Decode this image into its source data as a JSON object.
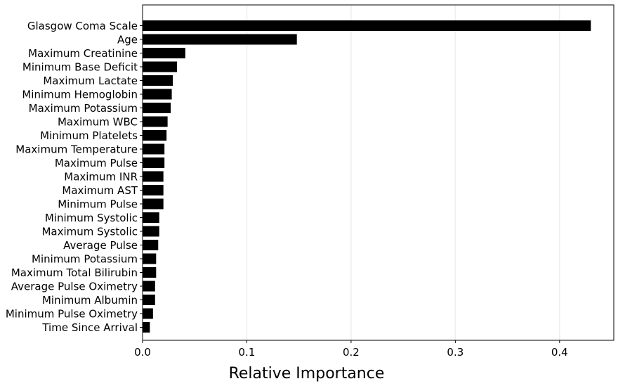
{
  "chart_data": {
    "type": "bar",
    "orientation": "horizontal",
    "categories": [
      "Glasgow Coma Scale",
      "Age",
      "Maximum Creatinine",
      "Minimum Base Deficit",
      "Maximum Lactate",
      "Minimum Hemoglobin",
      "Maximum Potassium",
      "Maximum WBC",
      "Minimum Platelets",
      "Maximum Temperature",
      "Maximum Pulse",
      "Maximum INR",
      "Maximum AST",
      "Minimum Pulse",
      "Minimum Systolic",
      "Maximum Systolic",
      "Average Pulse",
      "Minimum Potassium",
      "Maximum Total Bilirubin",
      "Average Pulse Oximetry",
      "Minimum Albumin",
      "Minimum Pulse Oximetry",
      "Time Since Arrival"
    ],
    "values": [
      0.43,
      0.148,
      0.041,
      0.033,
      0.029,
      0.028,
      0.027,
      0.024,
      0.023,
      0.021,
      0.021,
      0.02,
      0.02,
      0.02,
      0.016,
      0.016,
      0.015,
      0.013,
      0.013,
      0.012,
      0.012,
      0.01,
      0.007
    ],
    "xlabel": "Relative Importance",
    "ylabel": "",
    "title": "",
    "xlim": [
      0,
      0.452
    ],
    "xticks": [
      0.0,
      0.1,
      0.2,
      0.3,
      0.4
    ],
    "xtick_labels": [
      "0.0",
      "0.1",
      "0.2",
      "0.3",
      "0.4"
    ],
    "grid": "vertical",
    "bar_color": "#000000",
    "grid_color": "#eeeeee"
  }
}
